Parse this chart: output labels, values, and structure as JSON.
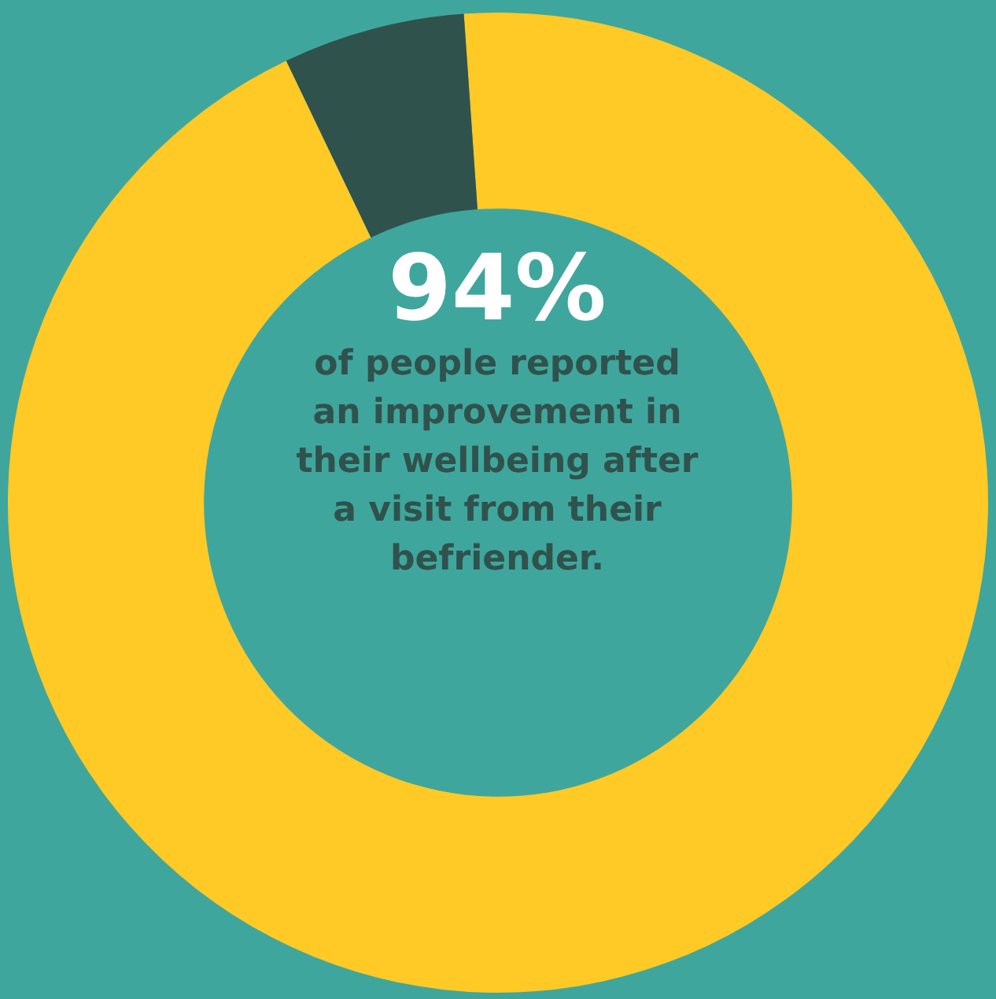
{
  "chart_data": {
    "type": "donut",
    "categories": [
      null,
      null
    ],
    "values": [
      94,
      6
    ],
    "colors": [
      "#ffc926",
      "#30524c"
    ],
    "legend": false,
    "annotations": [
      "94%",
      "of people reported an improvement in their wellbeing after a visit from their befriender."
    ]
  }
}
